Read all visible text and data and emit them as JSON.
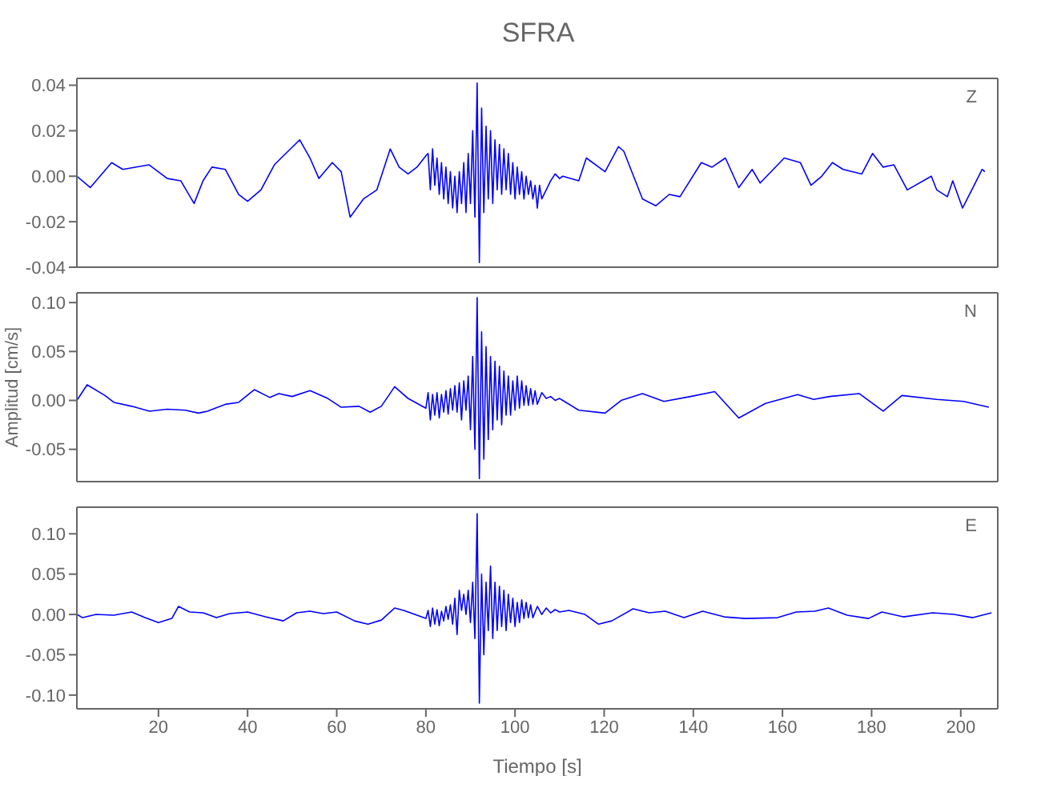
{
  "chart_data": [
    {
      "type": "line",
      "title": "SFRA",
      "annotations": [
        "Z"
      ],
      "color": "#0000ff",
      "tick_labels": "y",
      "xlim": [
        1.7,
        208.3
      ],
      "xticks": [
        20,
        40,
        60,
        80,
        100,
        120,
        140,
        160,
        180,
        200
      ],
      "ylim": [
        -0.04,
        0.043
      ],
      "yticks": [
        {
          "value": -0.04,
          "label": "-0.04"
        },
        {
          "value": -0.02,
          "label": "-0.02"
        },
        {
          "value": 0,
          "label": "0.00"
        },
        {
          "value": 0.02,
          "label": "0.02"
        },
        {
          "value": 0.04,
          "label": "0.04"
        }
      ],
      "x": [
        1.7,
        4.7,
        9.5,
        12,
        17.9,
        22,
        25,
        28,
        30,
        32,
        35,
        38,
        40,
        43,
        46,
        51.7,
        54,
        56,
        59,
        61,
        63,
        66,
        69,
        72,
        74,
        76,
        78,
        80,
        80.5,
        81,
        81.5,
        82,
        82.5,
        83,
        83.5,
        84,
        84.5,
        85,
        85.5,
        86,
        86.5,
        87,
        87.5,
        88,
        88.5,
        89,
        89.5,
        90,
        90.5,
        91,
        91.5,
        92,
        92.5,
        93,
        93.5,
        94,
        94.5,
        95,
        95.5,
        96,
        96.5,
        97,
        97.5,
        98,
        98.5,
        99,
        99.5,
        100,
        100.5,
        101,
        101.5,
        102,
        102.5,
        103,
        103.5,
        104,
        104.5,
        105,
        105.5,
        106,
        107,
        108,
        109,
        110,
        110.7,
        114.3,
        116,
        120.2,
        123.2,
        124.4,
        128.6,
        131.6,
        134.6,
        137,
        141.8,
        144.2,
        147.2,
        150.2,
        153.2,
        155,
        160.4,
        164,
        166.4,
        168.8,
        171.2,
        173.6,
        177.8,
        180.2,
        182.6,
        185,
        188,
        193.4,
        194.6,
        197,
        198.2,
        200.4,
        203,
        204.8,
        205.4
      ],
      "values": [
        0.0,
        -0.005,
        0.006,
        0.003,
        0.005,
        -0.001,
        -0.002,
        -0.012,
        -0.002,
        0.004,
        0.003,
        -0.008,
        -0.011,
        -0.006,
        0.005,
        0.016,
        0.008,
        -0.001,
        0.006,
        0.002,
        -0.018,
        -0.01,
        -0.006,
        0.012,
        0.004,
        0.001,
        0.004,
        0.009,
        0.01,
        -0.006,
        0.012,
        -0.004,
        0.008,
        -0.008,
        0.006,
        -0.01,
        0.004,
        -0.012,
        0.002,
        -0.014,
        0.0,
        -0.016,
        0.002,
        -0.012,
        0.006,
        -0.016,
        0.01,
        -0.012,
        0.02,
        -0.018,
        0.041,
        -0.038,
        0.03,
        -0.016,
        0.022,
        -0.01,
        0.02,
        -0.012,
        0.016,
        -0.006,
        0.014,
        -0.008,
        0.012,
        -0.006,
        0.01,
        -0.008,
        0.006,
        -0.01,
        0.004,
        -0.008,
        0.002,
        -0.01,
        0.0,
        -0.008,
        -0.002,
        -0.01,
        -0.004,
        -0.014,
        -0.004,
        -0.01,
        -0.006,
        -0.002,
        0.001,
        -0.001,
        0.0,
        -0.002,
        0.008,
        0.002,
        0.013,
        0.011,
        -0.01,
        -0.013,
        -0.008,
        -0.009,
        0.006,
        0.004,
        0.008,
        -0.005,
        0.003,
        -0.003,
        0.008,
        0.006,
        -0.004,
        0.0,
        0.006,
        0.003,
        0.001,
        0.01,
        0.004,
        0.005,
        -0.006,
        0.0,
        -0.006,
        -0.009,
        -0.002,
        -0.014,
        -0.004,
        0.003,
        0.002
      ]
    },
    {
      "type": "line",
      "ylabel": "Amplitud [cm/s]",
      "annotations": [
        "N"
      ],
      "color": "#0000ff",
      "tick_labels": "y",
      "xlim": [
        1.7,
        208.3
      ],
      "xticks": [
        20,
        40,
        60,
        80,
        100,
        120,
        140,
        160,
        180,
        200
      ],
      "ylim": [
        -0.083,
        0.11
      ],
      "yticks": [
        {
          "value": -0.05,
          "label": "-0.05"
        },
        {
          "value": 0,
          "label": "0.00"
        },
        {
          "value": 0.05,
          "label": "0.05"
        },
        {
          "value": 0.1,
          "label": "0.10"
        }
      ],
      "x": [
        1.7,
        4,
        8,
        10,
        14,
        18,
        22,
        26,
        29,
        31,
        35,
        38,
        41.5,
        45,
        47,
        50,
        54,
        58,
        61,
        65,
        67.5,
        70,
        73,
        76,
        80,
        80.5,
        81,
        81.5,
        82,
        82.5,
        83,
        83.5,
        84,
        84.5,
        85,
        85.5,
        86,
        86.5,
        87,
        87.5,
        88,
        88.5,
        89,
        89.5,
        90,
        90.5,
        91,
        91.5,
        92,
        92.5,
        93,
        93.5,
        94,
        94.5,
        95,
        95.5,
        96,
        96.5,
        97,
        97.5,
        98,
        98.5,
        99,
        99.5,
        100,
        100.5,
        101,
        101.5,
        102,
        102.5,
        103,
        103.5,
        104,
        104.5,
        105,
        106,
        107,
        108,
        109,
        110,
        110.7,
        114.3,
        120.2,
        123.8,
        128.6,
        133.4,
        139.4,
        144.8,
        150.2,
        156.2,
        163.4,
        167,
        170.6,
        177.2,
        182.6,
        186.8,
        194.6,
        200.6,
        206.3
      ],
      "values": [
        0.0,
        0.016,
        0.005,
        -0.002,
        -0.006,
        -0.011,
        -0.009,
        -0.01,
        -0.013,
        -0.011,
        -0.004,
        -0.002,
        0.011,
        0.003,
        0.007,
        0.004,
        0.01,
        0.002,
        -0.007,
        -0.006,
        -0.012,
        -0.006,
        0.014,
        0.002,
        -0.008,
        0.008,
        -0.02,
        0.006,
        -0.015,
        0.008,
        -0.018,
        0.006,
        -0.012,
        0.01,
        -0.014,
        0.012,
        -0.01,
        0.015,
        -0.012,
        0.018,
        -0.02,
        0.02,
        -0.01,
        0.025,
        -0.03,
        0.045,
        -0.05,
        0.105,
        -0.08,
        0.07,
        -0.06,
        0.055,
        -0.04,
        0.045,
        -0.03,
        0.04,
        -0.02,
        0.035,
        -0.025,
        0.03,
        -0.015,
        0.025,
        -0.015,
        0.02,
        -0.01,
        0.025,
        -0.008,
        0.02,
        -0.005,
        0.015,
        -0.005,
        0.012,
        -0.004,
        0.01,
        -0.004,
        0.008,
        0.002,
        0.004,
        0.0,
        0.002,
        0.0,
        -0.01,
        -0.013,
        0.0,
        0.007,
        -0.001,
        0.004,
        0.009,
        -0.018,
        -0.003,
        0.006,
        0.001,
        0.004,
        0.007,
        -0.011,
        0.005,
        0.001,
        -0.001,
        -0.007
      ]
    },
    {
      "type": "line",
      "xlabel": "Tiempo [s]",
      "annotations": [
        "E"
      ],
      "color": "#0000ff",
      "xlim": [
        1.7,
        208.3
      ],
      "xticks": [
        20,
        40,
        60,
        80,
        100,
        120,
        140,
        160,
        180,
        200
      ],
      "ylim": [
        -0.117,
        0.133
      ],
      "yticks": [
        {
          "value": -0.1,
          "label": "-0.10"
        },
        {
          "value": -0.05,
          "label": "-0.05"
        },
        {
          "value": 0,
          "label": "0.00"
        },
        {
          "value": 0.05,
          "label": "0.05"
        },
        {
          "value": 0.1,
          "label": "0.10"
        }
      ],
      "x": [
        1.7,
        3,
        6,
        10,
        14,
        17,
        20,
        23,
        24.5,
        27,
        30,
        33,
        36,
        40,
        44,
        48,
        51,
        54,
        57,
        60,
        64,
        67,
        70,
        73,
        75,
        80,
        80.5,
        81,
        81.5,
        82,
        82.5,
        83,
        83.5,
        84,
        84.5,
        85,
        85.5,
        86,
        86.5,
        87,
        87.5,
        88,
        88.5,
        89,
        89.5,
        90,
        90.5,
        91,
        91.5,
        92,
        92.5,
        93,
        93.5,
        94,
        94.5,
        95,
        95.5,
        96,
        96.5,
        97,
        97.5,
        98,
        98.5,
        99,
        99.5,
        100,
        100.5,
        101,
        101.5,
        102,
        102.5,
        103,
        103.5,
        104,
        105,
        106,
        107,
        108,
        109,
        110,
        111,
        112.1,
        115.7,
        118.7,
        121.7,
        126.5,
        130.1,
        133.7,
        137.9,
        142.1,
        146.9,
        151.7,
        158.9,
        163.1,
        167.3,
        170.3,
        174.5,
        179.3,
        182.3,
        187.1,
        193.7,
        198.5,
        202.7,
        206.9
      ],
      "values": [
        0.0,
        -0.004,
        0.0,
        -0.001,
        0.003,
        -0.004,
        -0.01,
        -0.005,
        0.01,
        0.003,
        0.002,
        -0.004,
        0.001,
        0.003,
        -0.003,
        -0.008,
        0.002,
        0.004,
        0.001,
        0.003,
        -0.008,
        -0.012,
        -0.007,
        0.008,
        0.005,
        -0.005,
        0.005,
        -0.015,
        0.008,
        -0.012,
        0.006,
        -0.014,
        0.004,
        -0.008,
        0.01,
        -0.006,
        0.012,
        -0.012,
        0.02,
        -0.025,
        0.03,
        0.005,
        0.025,
        0.0,
        0.03,
        -0.01,
        0.04,
        -0.03,
        0.125,
        -0.11,
        0.05,
        -0.05,
        0.04,
        -0.02,
        0.06,
        -0.03,
        0.04,
        -0.02,
        0.035,
        -0.015,
        0.03,
        -0.02,
        0.025,
        -0.01,
        0.02,
        -0.015,
        0.015,
        -0.01,
        0.018,
        -0.005,
        0.015,
        -0.004,
        0.012,
        -0.004,
        0.01,
        0.0,
        0.008,
        0.002,
        0.006,
        0.003,
        0.004,
        0.005,
        0.0,
        -0.012,
        -0.008,
        0.007,
        0.002,
        0.004,
        -0.004,
        0.004,
        -0.003,
        -0.005,
        -0.004,
        0.003,
        0.004,
        0.008,
        -0.001,
        -0.005,
        0.003,
        -0.003,
        0.002,
        0.0,
        -0.004,
        0.002
      ]
    }
  ]
}
